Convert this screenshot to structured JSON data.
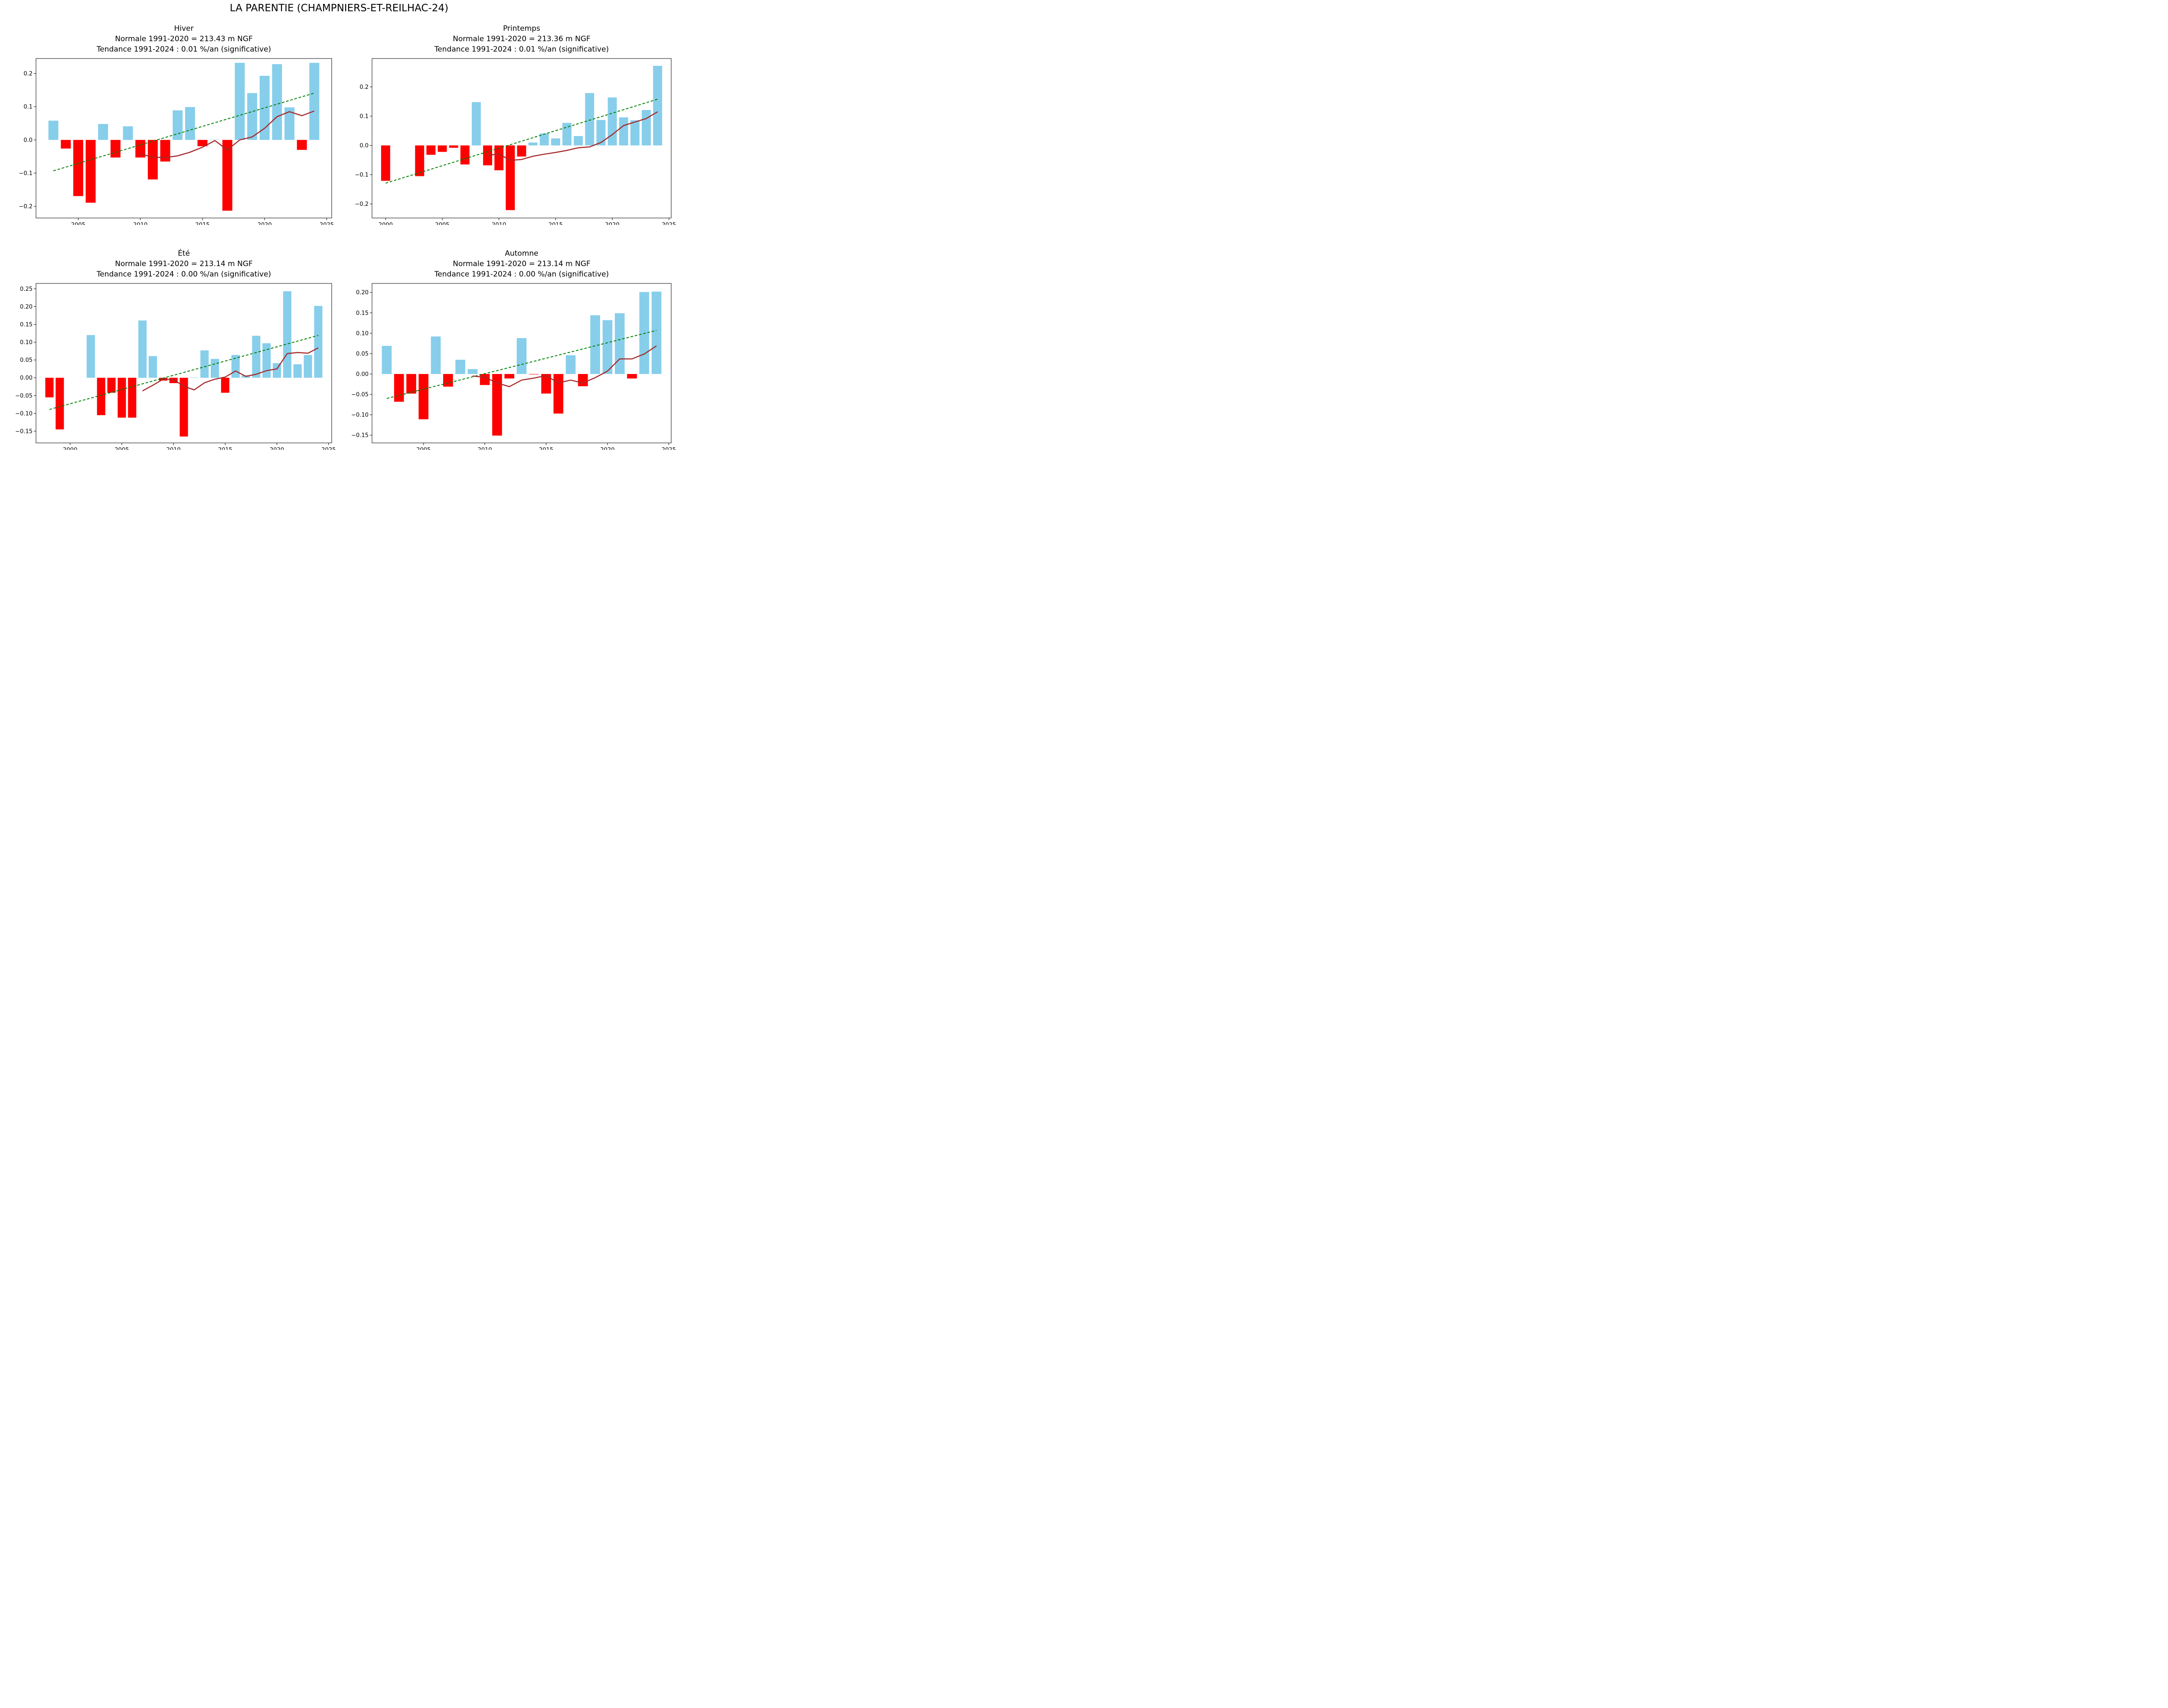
{
  "figure": {
    "suptitle": "LA PARENTIE (CHAMPNIERS-ET-REILHAC-24)",
    "colors": {
      "positive_bar": "#87ceeb",
      "negative_bar": "#ff0000",
      "moving_average": "#a52a2a",
      "trend": "#008000",
      "axis": "#000000"
    }
  },
  "chart_data": [
    {
      "type": "bar",
      "season": "Hiver",
      "title_lines": [
        "Hiver",
        "Normale 1991-2020 = 213.43 m NGF",
        "Tendance 1991-2024 : 0.01 %/an (significative)"
      ],
      "xlabel": "",
      "ylabel": "",
      "xlim": [
        2001.6,
        2025.4
      ],
      "ylim": [
        -0.235,
        0.245
      ],
      "xticks": [
        2005,
        2010,
        2015,
        2020,
        2025
      ],
      "xtick_labels": [
        "2005",
        "2010",
        "2015",
        "2020",
        "2025"
      ],
      "yticks": [
        -0.2,
        -0.1,
        0.0,
        0.1,
        0.2
      ],
      "ytick_labels": [
        "−0.2",
        "−0.1",
        "0.0",
        "0.1",
        "0.2"
      ],
      "grid": false,
      "bars": {
        "x": [
          2003,
          2004,
          2005,
          2006,
          2007,
          2008,
          2009,
          2010,
          2011,
          2012,
          2013,
          2014,
          2015,
          2016,
          2017,
          2018,
          2019,
          2020,
          2021,
          2022,
          2023,
          2024
        ],
        "values": [
          0.058,
          -0.026,
          -0.169,
          -0.189,
          0.048,
          -0.053,
          0.041,
          -0.053,
          -0.119,
          -0.065,
          0.089,
          0.099,
          -0.019,
          0.001,
          -0.213,
          0.232,
          0.141,
          0.193,
          0.228,
          0.098,
          -0.03,
          0.232
        ]
      },
      "moving_average": {
        "x": [
          2010,
          2011,
          2012,
          2013,
          2014,
          2015,
          2016,
          2017,
          2018,
          2019,
          2020,
          2021,
          2022,
          2023,
          2024
        ],
        "values": [
          -0.042,
          -0.052,
          -0.053,
          -0.048,
          -0.037,
          -0.022,
          -0.002,
          -0.03,
          0.0,
          0.009,
          0.035,
          0.07,
          0.085,
          0.073,
          0.087
        ]
      },
      "trend": {
        "x": [
          2003,
          2024
        ],
        "values": [
          -0.093,
          0.141
        ]
      }
    },
    {
      "type": "bar",
      "season": "Printemps",
      "title_lines": [
        "Printemps",
        "Normale 1991-2020 = 213.36 m NGF",
        "Tendance 1991-2024 : 0.01 %/an (significative)"
      ],
      "xlabel": "",
      "ylabel": "",
      "xlim": [
        1998.8,
        2025.2
      ],
      "ylim": [
        -0.248,
        0.297
      ],
      "xticks": [
        2000,
        2005,
        2010,
        2015,
        2020,
        2025
      ],
      "xtick_labels": [
        "2000",
        "2005",
        "2010",
        "2015",
        "2020",
        "2025"
      ],
      "yticks": [
        -0.2,
        -0.1,
        0.0,
        0.1,
        0.2
      ],
      "ytick_labels": [
        "−0.2",
        "−0.1",
        "0.0",
        "0.1",
        "0.2"
      ],
      "grid": false,
      "bars": {
        "x": [
          2000,
          2003,
          2004,
          2005,
          2006,
          2007,
          2008,
          2009,
          2010,
          2011,
          2012,
          2013,
          2014,
          2015,
          2016,
          2017,
          2018,
          2019,
          2020,
          2021,
          2022,
          2023,
          2024
        ],
        "values": [
          -0.121,
          -0.105,
          -0.032,
          -0.022,
          -0.008,
          -0.065,
          0.148,
          -0.068,
          -0.085,
          -0.221,
          -0.038,
          0.01,
          0.041,
          0.024,
          0.077,
          0.032,
          0.179,
          0.087,
          0.164,
          0.096,
          0.086,
          0.121,
          0.272
        ]
      },
      "moving_average": {
        "x": [
          2009,
          2010,
          2011,
          2012,
          2013,
          2014,
          2015,
          2016,
          2017,
          2018,
          2019,
          2020,
          2021,
          2022,
          2023,
          2024
        ],
        "values": [
          -0.034,
          -0.029,
          -0.051,
          -0.048,
          -0.037,
          -0.03,
          -0.024,
          -0.017,
          -0.008,
          -0.005,
          0.01,
          0.037,
          0.068,
          0.08,
          0.092,
          0.115
        ]
      },
      "trend": {
        "x": [
          2000,
          2024
        ],
        "values": [
          -0.129,
          0.158
        ]
      }
    },
    {
      "type": "bar",
      "season": "Été",
      "title_lines": [
        "Été",
        "Normale 1991-2020 = 213.14 m NGF",
        "Tendance 1991-2024 : 0.00 %/an (significative)"
      ],
      "xlabel": "",
      "ylabel": "",
      "xlim": [
        1996.7,
        2025.3
      ],
      "ylim": [
        -0.183,
        0.265
      ],
      "xticks": [
        2000,
        2005,
        2010,
        2015,
        2020,
        2025
      ],
      "xtick_labels": [
        "2000",
        "2005",
        "2010",
        "2015",
        "2020",
        "2025"
      ],
      "yticks": [
        -0.15,
        -0.1,
        -0.05,
        0.0,
        0.05,
        0.1,
        0.15,
        0.2,
        0.25
      ],
      "ytick_labels": [
        "−0.15",
        "−0.10",
        "−0.05",
        "0.00",
        "0.05",
        "0.10",
        "0.15",
        "0.20",
        "0.25"
      ],
      "grid": false,
      "bars": {
        "x": [
          1998,
          1999,
          2002,
          2003,
          2004,
          2005,
          2006,
          2007,
          2008,
          2009,
          2010,
          2011,
          2012,
          2013,
          2014,
          2015,
          2016,
          2017,
          2018,
          2019,
          2020,
          2021,
          2022,
          2023,
          2024
        ],
        "values": [
          -0.055,
          -0.145,
          0.12,
          -0.105,
          -0.042,
          -0.112,
          -0.112,
          0.161,
          0.061,
          -0.008,
          -0.015,
          -0.165,
          0.001,
          0.077,
          0.053,
          -0.042,
          0.064,
          0.007,
          0.118,
          0.097,
          0.041,
          0.243,
          0.038,
          0.064,
          0.202
        ]
      },
      "moving_average": {
        "x": [
          2007,
          2008,
          2009,
          2010,
          2011,
          2012,
          2013,
          2014,
          2015,
          2016,
          2017,
          2018,
          2019,
          2020,
          2021,
          2022,
          2023,
          2024
        ],
        "values": [
          -0.037,
          -0.021,
          -0.004,
          -0.005,
          -0.024,
          -0.034,
          -0.014,
          -0.004,
          0.002,
          0.019,
          0.004,
          0.01,
          0.02,
          0.025,
          0.068,
          0.071,
          0.069,
          0.084
        ]
      },
      "trend": {
        "x": [
          1998,
          2024
        ],
        "values": [
          -0.089,
          0.119
        ]
      }
    },
    {
      "type": "bar",
      "season": "Automne",
      "title_lines": [
        "Automne",
        "Normale 1991-2020 = 213.14 m NGF",
        "Tendance 1991-2024 : 0.00 %/an (significative)"
      ],
      "xlabel": "",
      "ylabel": "",
      "xlim": [
        2000.8,
        2025.2
      ],
      "ylim": [
        -0.169,
        0.222
      ],
      "xticks": [
        2005,
        2010,
        2015,
        2020,
        2025
      ],
      "xtick_labels": [
        "2005",
        "2010",
        "2015",
        "2020",
        "2025"
      ],
      "yticks": [
        -0.15,
        -0.1,
        -0.05,
        0.0,
        0.05,
        0.1,
        0.15,
        0.2
      ],
      "ytick_labels": [
        "−0.15",
        "−0.10",
        "−0.05",
        "0.00",
        "0.05",
        "0.10",
        "0.15",
        "0.20"
      ],
      "grid": false,
      "bars": {
        "x": [
          2002,
          2003,
          2004,
          2005,
          2006,
          2007,
          2008,
          2009,
          2010,
          2011,
          2012,
          2013,
          2014,
          2015,
          2016,
          2017,
          2018,
          2019,
          2020,
          2021,
          2022,
          2023,
          2024
        ],
        "values": [
          0.069,
          -0.068,
          -0.048,
          -0.111,
          0.092,
          -0.031,
          0.035,
          0.012,
          -0.027,
          -0.151,
          -0.011,
          0.088,
          -0.001,
          -0.048,
          -0.097,
          0.046,
          -0.03,
          0.144,
          0.132,
          0.149,
          -0.011,
          0.201,
          0.202
        ]
      },
      "moving_average": {
        "x": [
          2009,
          2010,
          2011,
          2012,
          2013,
          2014,
          2015,
          2016,
          2017,
          2018,
          2019,
          2020,
          2021,
          2022,
          2023,
          2024
        ],
        "values": [
          -0.005,
          -0.008,
          -0.022,
          -0.031,
          -0.015,
          -0.01,
          -0.004,
          -0.022,
          -0.015,
          -0.022,
          -0.009,
          0.007,
          0.037,
          0.037,
          0.049,
          0.069
        ]
      },
      "trend": {
        "x": [
          2002,
          2024
        ],
        "values": [
          -0.06,
          0.107
        ]
      }
    }
  ]
}
